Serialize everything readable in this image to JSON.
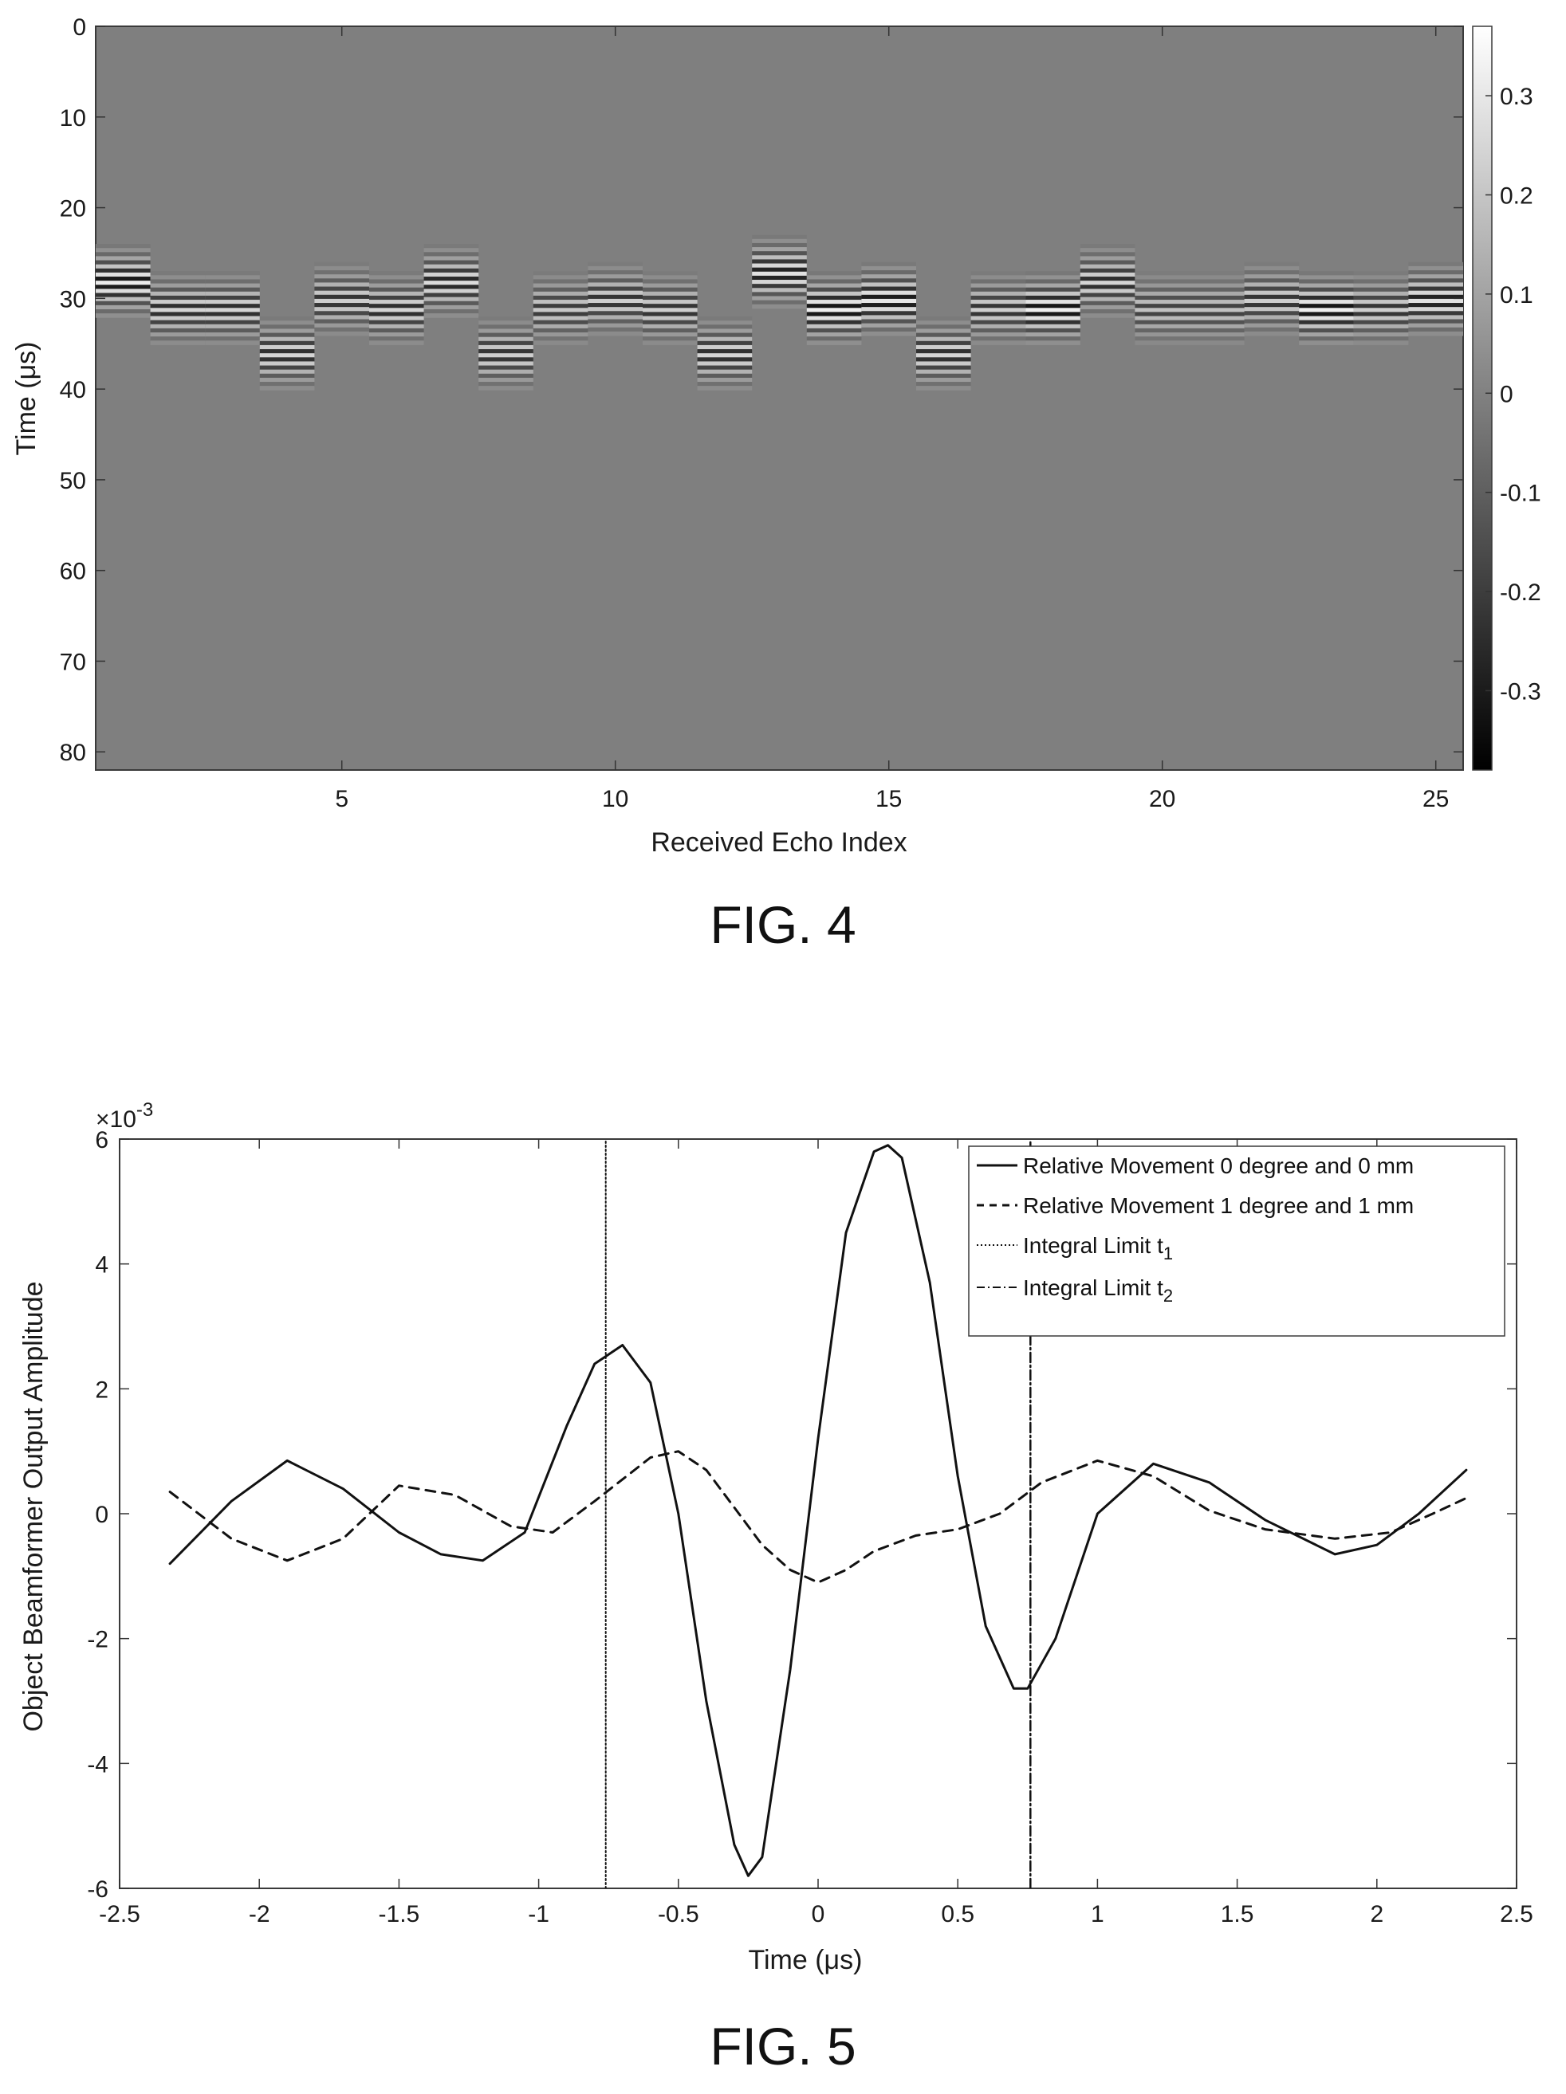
{
  "fig4": {
    "caption": "FIG. 4",
    "chart_data": {
      "type": "heatmap",
      "xlabel": "Received Echo Index",
      "ylabel": "Time (μs)",
      "xlim": [
        0.5,
        25.5
      ],
      "ylim": [
        0,
        82
      ],
      "x_ticks": [
        5,
        10,
        15,
        20,
        25
      ],
      "y_ticks": [
        0,
        10,
        20,
        30,
        40,
        50,
        60,
        70,
        80
      ],
      "colormap": "gray",
      "colorbar": {
        "ticks": [
          0.3,
          0.2,
          0.1,
          0,
          -0.1,
          -0.2,
          -0.3
        ],
        "tick_labels": [
          "0.3",
          "0.2",
          "0.1",
          "0",
          "-0.1",
          "-0.2",
          "-0.3"
        ],
        "range": [
          -0.38,
          0.37
        ]
      },
      "echo_index": [
        1,
        2,
        3,
        4,
        5,
        6,
        7,
        8,
        9,
        10,
        11,
        12,
        13,
        14,
        15,
        16,
        17,
        18,
        19,
        20,
        21,
        22,
        23,
        24,
        25
      ],
      "echo_center_time_us": [
        28,
        31,
        31,
        36,
        30,
        31,
        28,
        36,
        31,
        30,
        31,
        36,
        27,
        31,
        30,
        36,
        31,
        31,
        28,
        31,
        31,
        30,
        31,
        31,
        30
      ],
      "echo_amplitude": [
        0.33,
        0.26,
        0.26,
        0.26,
        0.24,
        0.26,
        0.28,
        0.24,
        0.22,
        0.24,
        0.24,
        0.26,
        0.3,
        0.34,
        0.32,
        0.26,
        0.24,
        0.34,
        0.26,
        0.2,
        0.2,
        0.24,
        0.34,
        0.24,
        0.3
      ]
    }
  },
  "fig5": {
    "caption": "FIG. 5",
    "exponent_label": "×10",
    "exponent_power": "-3",
    "chart_data": {
      "type": "line",
      "xlabel": "Time (μs)",
      "ylabel": "Object Beamformer Output Amplitude",
      "xlim": [
        -2.5,
        2.5
      ],
      "ylim": [
        -6,
        6
      ],
      "y_scale_label": "×10^-3",
      "x_ticks": [
        "-2.5",
        "-2",
        "-1.5",
        "-1",
        "-0.5",
        "0",
        "0.5",
        "1",
        "1.5",
        "2",
        "2.5"
      ],
      "y_ticks": [
        "-6",
        "-4",
        "-2",
        "0",
        "2",
        "4",
        "6"
      ],
      "legend_position": "top-right",
      "series": [
        {
          "name": "Relative Movement 0 degree and 0 mm",
          "style": "solid",
          "x": [
            -2.32,
            -2.1,
            -1.9,
            -1.7,
            -1.5,
            -1.35,
            -1.2,
            -1.05,
            -0.9,
            -0.8,
            -0.7,
            -0.6,
            -0.5,
            -0.4,
            -0.3,
            -0.25,
            -0.2,
            -0.1,
            0.0,
            0.1,
            0.2,
            0.25,
            0.3,
            0.4,
            0.5,
            0.6,
            0.7,
            0.75,
            0.85,
            1.0,
            1.2,
            1.4,
            1.6,
            1.85,
            2.0,
            2.15,
            2.32
          ],
          "y": [
            -0.8,
            0.2,
            0.85,
            0.4,
            -0.3,
            -0.65,
            -0.75,
            -0.3,
            1.4,
            2.4,
            2.7,
            2.1,
            0.0,
            -3.0,
            -5.3,
            -5.8,
            -5.5,
            -2.5,
            1.2,
            4.5,
            5.8,
            5.9,
            5.7,
            3.7,
            0.6,
            -1.8,
            -2.8,
            -2.8,
            -2.0,
            0.0,
            0.8,
            0.5,
            -0.1,
            -0.65,
            -0.5,
            0.0,
            0.7
          ]
        },
        {
          "name": "Relative Movement 1 degree and 1 mm",
          "style": "dashed",
          "x": [
            -2.32,
            -2.1,
            -1.9,
            -1.7,
            -1.5,
            -1.3,
            -1.1,
            -0.95,
            -0.8,
            -0.6,
            -0.5,
            -0.4,
            -0.3,
            -0.2,
            -0.1,
            0.0,
            0.1,
            0.2,
            0.35,
            0.5,
            0.65,
            0.8,
            1.0,
            1.2,
            1.4,
            1.6,
            1.85,
            2.05,
            2.2,
            2.32
          ],
          "y": [
            0.35,
            -0.4,
            -0.75,
            -0.4,
            0.45,
            0.3,
            -0.2,
            -0.3,
            0.2,
            0.9,
            1.0,
            0.7,
            0.1,
            -0.5,
            -0.9,
            -1.1,
            -0.9,
            -0.6,
            -0.35,
            -0.25,
            0.0,
            0.5,
            0.85,
            0.6,
            0.05,
            -0.25,
            -0.4,
            -0.3,
            0.0,
            0.25
          ]
        },
        {
          "name": "Integral Limit t",
          "name_subscript": "1",
          "style": "dotted",
          "x": [
            -0.76,
            -0.76
          ],
          "y": [
            -6,
            6
          ]
        },
        {
          "name": "Integral Limit t",
          "name_subscript": "2",
          "style": "dashdot",
          "x": [
            0.76,
            0.76
          ],
          "y": [
            -6,
            6
          ]
        }
      ]
    }
  }
}
